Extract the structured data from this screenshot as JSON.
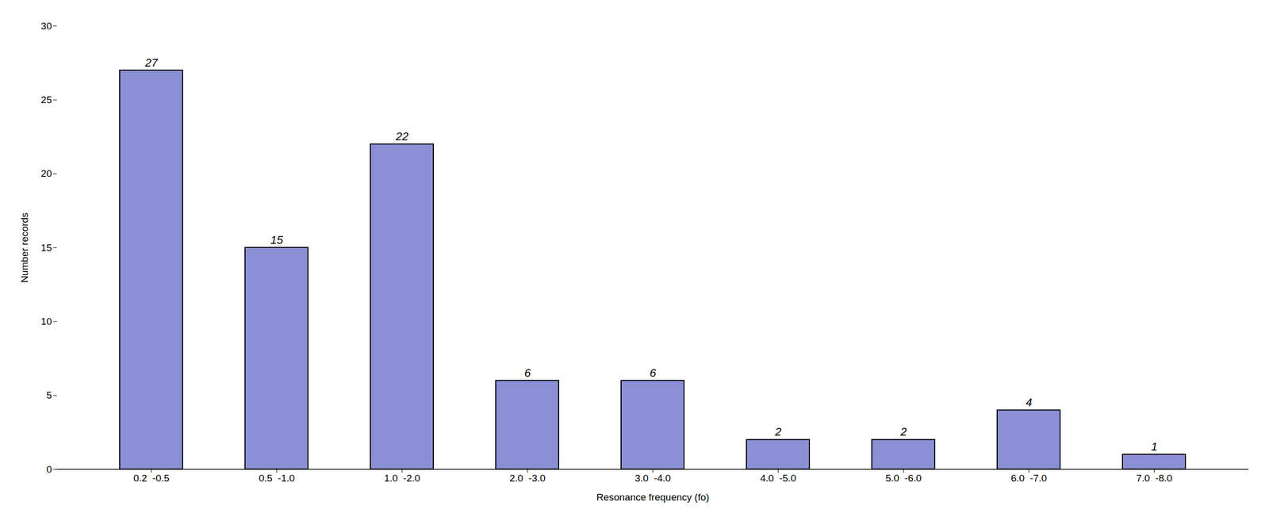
{
  "chart_data": {
    "type": "bar",
    "categories": [
      "0.2  -0.5",
      "0.5  -1.0",
      "1.0  -2.0",
      "2.0  -3.0",
      "3.0  -4.0",
      "4.0  -5.0",
      "5.0  -6.0",
      "6.0  -7.0",
      "7.0  -8.0"
    ],
    "values": [
      27,
      15,
      22,
      6,
      6,
      2,
      2,
      4,
      1
    ],
    "color": "#8B8FD4",
    "xlabel": "Resonance frequency (fo)",
    "ylabel": "Number records",
    "ylim": [
      0,
      30
    ],
    "yticks": [
      0,
      5,
      10,
      15,
      20,
      25,
      30
    ],
    "grid": false,
    "data_labels": true
  }
}
